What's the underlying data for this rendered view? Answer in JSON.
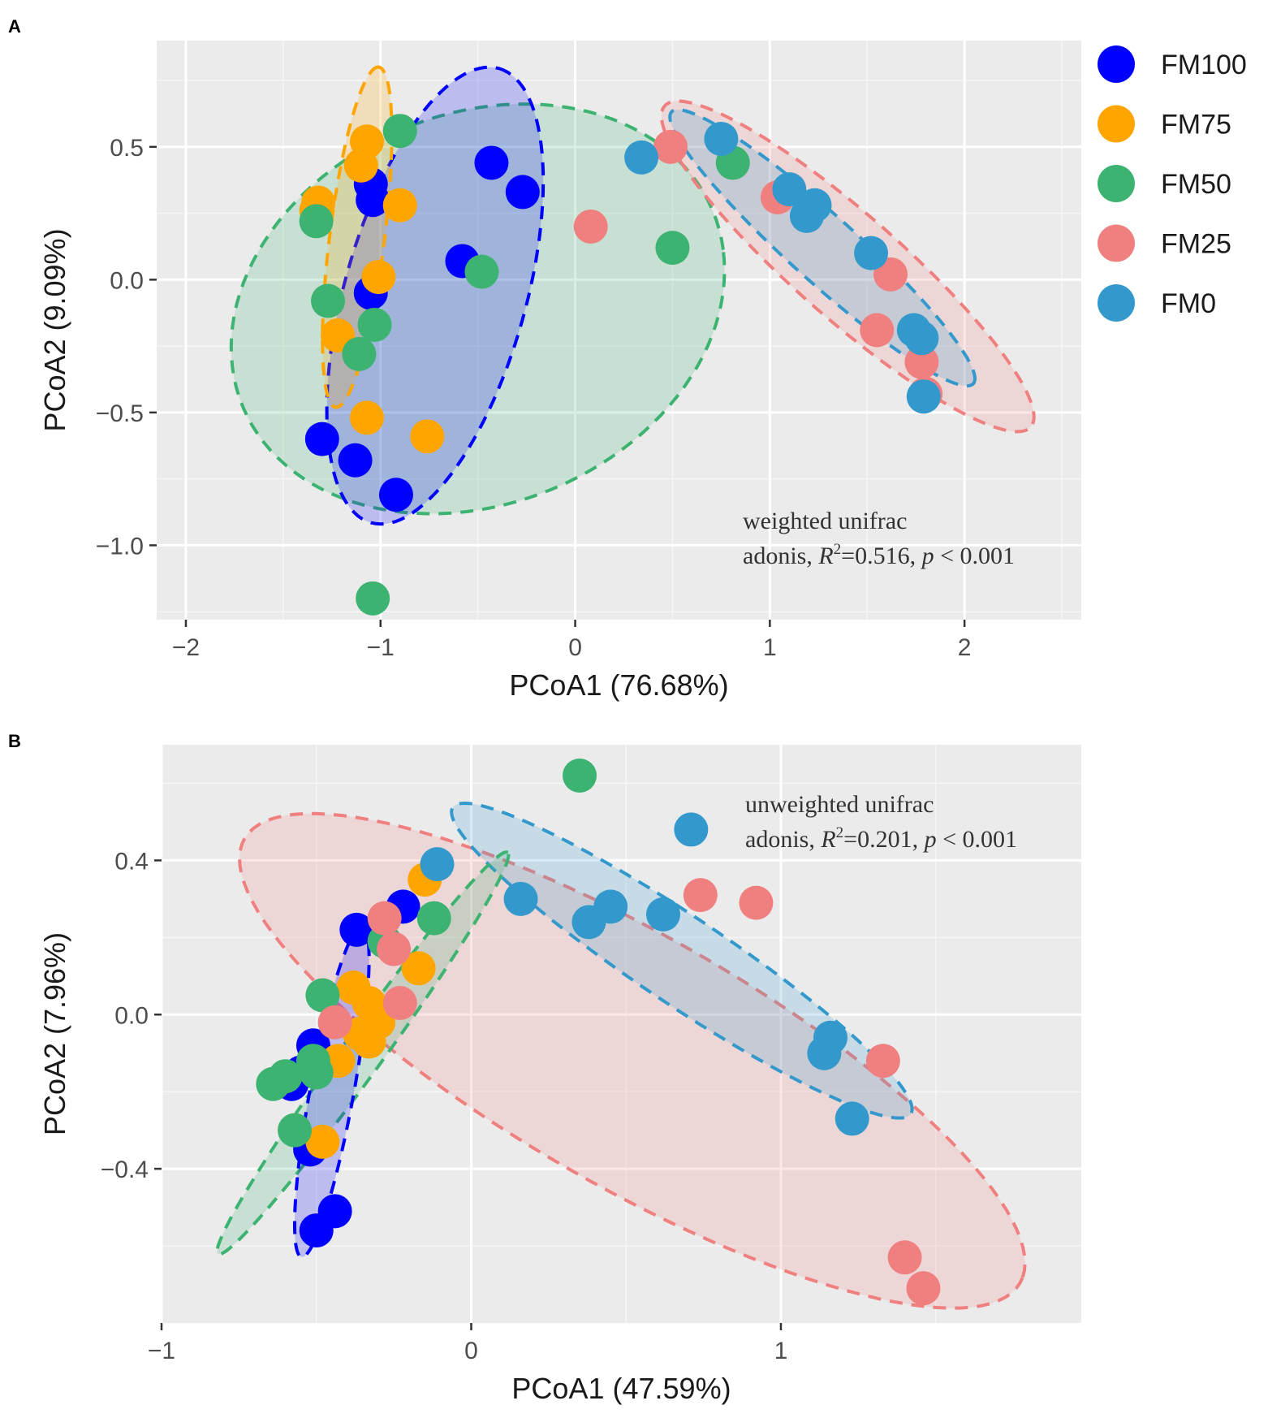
{
  "groups": [
    {
      "key": "FM100",
      "label": "FM100",
      "color": "#0000FF"
    },
    {
      "key": "FM75",
      "label": "FM75",
      "color": "#FFA500"
    },
    {
      "key": "FM50",
      "label": "FM50",
      "color": "#3CB371"
    },
    {
      "key": "FM25",
      "label": "FM25",
      "color": "#F08080"
    },
    {
      "key": "FM0",
      "label": "FM0",
      "color": "#3399CC"
    }
  ],
  "chart_data": [
    {
      "panel": "A",
      "type": "scatter",
      "title": "",
      "xlabel": "PCoA1 (76.68%)",
      "ylabel": "PCoA2 (9.09%)",
      "xlim": [
        -2.15,
        2.6
      ],
      "ylim": [
        -1.28,
        0.9
      ],
      "xticks": [
        -2,
        -1,
        0,
        1,
        2
      ],
      "xtick_labels": [
        "−2",
        "−1",
        "0",
        "1",
        "2"
      ],
      "yticks": [
        -1.0,
        -0.5,
        0.0,
        0.5
      ],
      "ytick_labels": [
        "−1.0",
        "−0.5",
        "0.0",
        "0.5"
      ],
      "grid": true,
      "legend": "right",
      "annotation": {
        "line1": "weighted unifrac",
        "prefix": "adonis, ",
        "r": "R",
        "sup": "2",
        "r_value": "=0.516, ",
        "p": "p",
        "p_value": " < 0.001"
      },
      "ellipses": [
        {
          "group": "FM50",
          "cx": -0.5,
          "cy": -0.11,
          "rx": 1.28,
          "ry": 0.75,
          "angle_deg": 10
        },
        {
          "group": "FM100",
          "cx": -0.72,
          "cy": -0.06,
          "rx": 0.92,
          "ry": 0.45,
          "angle_deg": 66
        },
        {
          "group": "FM75",
          "cx": -1.12,
          "cy": 0.16,
          "rx": 0.65,
          "ry": 0.14,
          "angle_deg": 80
        },
        {
          "group": "FM25",
          "cx": 1.4,
          "cy": 0.05,
          "rx": 1.12,
          "ry": 0.22,
          "angle_deg": -32
        },
        {
          "group": "FM0",
          "cx": 1.27,
          "cy": 0.12,
          "rx": 0.93,
          "ry": 0.14,
          "angle_deg": -33
        }
      ],
      "series": [
        {
          "name": "FM100",
          "x": [
            -1.05,
            -1.04,
            -1.05,
            -0.43,
            -0.27,
            -0.58,
            -1.3,
            -1.13,
            -0.92
          ],
          "y": [
            0.36,
            0.3,
            -0.05,
            0.44,
            0.33,
            0.07,
            -0.6,
            -0.68,
            -0.81
          ]
        },
        {
          "name": "FM75",
          "x": [
            -1.07,
            -1.1,
            -1.32,
            -1.33,
            -0.9,
            -1.01,
            -1.22,
            -1.07,
            -0.76
          ],
          "y": [
            0.52,
            0.43,
            0.29,
            0.26,
            0.28,
            0.01,
            -0.21,
            -0.52,
            -0.59
          ]
        },
        {
          "name": "FM50",
          "x": [
            -0.9,
            -1.33,
            -1.27,
            -1.03,
            -1.11,
            -0.48,
            0.5,
            0.81,
            -1.04
          ],
          "y": [
            0.56,
            0.22,
            -0.08,
            -0.17,
            -0.28,
            0.03,
            0.12,
            0.44,
            -1.2
          ]
        },
        {
          "name": "FM25",
          "x": [
            0.08,
            0.49,
            1.04,
            1.62,
            1.55,
            1.78,
            1.8
          ],
          "y": [
            0.2,
            0.5,
            0.31,
            0.02,
            -0.19,
            -0.31,
            -0.43
          ]
        },
        {
          "name": "FM0",
          "x": [
            0.34,
            0.75,
            1.1,
            1.23,
            1.19,
            1.52,
            1.74,
            1.78,
            1.79
          ],
          "y": [
            0.46,
            0.53,
            0.34,
            0.28,
            0.24,
            0.1,
            -0.19,
            -0.22,
            -0.44
          ]
        }
      ]
    },
    {
      "panel": "B",
      "type": "scatter",
      "title": "",
      "xlabel": "PCoA1 (47.59%)",
      "ylabel": "PCoA2 (7.96%)",
      "xlim": [
        -1.0,
        1.97
      ],
      "ylim": [
        -0.8,
        0.7
      ],
      "xticks": [
        -1,
        0,
        1
      ],
      "xtick_labels": [
        "−1",
        "0",
        "1"
      ],
      "yticks": [
        -0.4,
        0.0,
        0.4
      ],
      "ytick_labels": [
        "−0.4",
        "0.0",
        "0.4"
      ],
      "grid": true,
      "legend": "none",
      "annotation": {
        "line1": "unweighted unifrac",
        "prefix": "adonis, ",
        "r": "R",
        "sup": "2",
        "r_value": "=0.201, ",
        "p": "p",
        "p_value": " < 0.001"
      },
      "ellipses": [
        {
          "group": "FM25",
          "cx": 0.52,
          "cy": -0.12,
          "rx": 1.38,
          "ry": 0.34,
          "angle_deg": -24
        },
        {
          "group": "FM0",
          "cx": 0.68,
          "cy": 0.14,
          "rx": 0.84,
          "ry": 0.12,
          "angle_deg": -28
        },
        {
          "group": "FM50",
          "cx": -0.35,
          "cy": -0.1,
          "rx": 0.7,
          "ry": 0.06,
          "angle_deg": 48
        },
        {
          "group": "FM100",
          "cx": -0.45,
          "cy": -0.2,
          "rx": 0.44,
          "ry": 0.07,
          "angle_deg": 77
        }
      ],
      "series": [
        {
          "name": "FM100",
          "x": [
            -0.22,
            -0.37,
            -0.51,
            -0.55,
            -0.58,
            -0.52,
            -0.44,
            -0.5
          ],
          "y": [
            0.28,
            0.22,
            -0.08,
            -0.15,
            -0.18,
            -0.35,
            -0.51,
            -0.56
          ]
        },
        {
          "name": "FM75",
          "x": [
            -0.15,
            -0.38,
            -0.33,
            -0.3,
            -0.36,
            -0.33,
            -0.43,
            -0.48,
            -0.17
          ],
          "y": [
            0.35,
            0.07,
            0.03,
            -0.02,
            -0.05,
            -0.07,
            -0.12,
            -0.33,
            0.12
          ]
        },
        {
          "name": "FM50",
          "x": [
            0.35,
            -0.12,
            -0.28,
            -0.48,
            -0.51,
            -0.5,
            -0.6,
            -0.64,
            -0.57
          ],
          "y": [
            0.62,
            0.25,
            0.19,
            0.05,
            -0.12,
            -0.15,
            -0.16,
            -0.18,
            -0.3
          ]
        },
        {
          "name": "FM25",
          "x": [
            -0.28,
            -0.25,
            -0.23,
            -0.44,
            0.74,
            0.92,
            1.33,
            1.4,
            1.46
          ],
          "y": [
            0.25,
            0.17,
            0.03,
            -0.02,
            0.31,
            0.29,
            -0.12,
            -0.63,
            -0.71
          ]
        },
        {
          "name": "FM0",
          "x": [
            -0.11,
            0.16,
            0.38,
            0.45,
            0.62,
            0.71,
            1.16,
            1.14,
            1.23
          ],
          "y": [
            0.39,
            0.3,
            0.24,
            0.28,
            0.26,
            0.48,
            -0.06,
            -0.1,
            -0.27
          ]
        }
      ]
    }
  ]
}
